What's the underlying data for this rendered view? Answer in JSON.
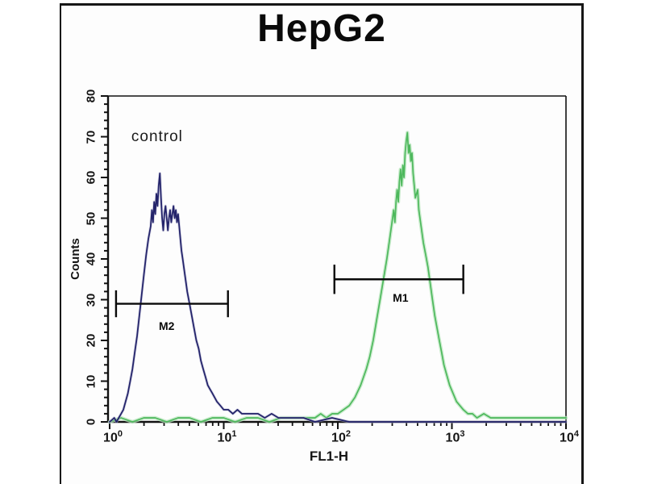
{
  "figure": {
    "title": "HepG2"
  },
  "colors": {
    "frame_border": "#161616",
    "axis": "#111111",
    "control_curve": "#23236a",
    "control_halo": "#b9b9d6",
    "positive_curve": "#4db85c",
    "positive_halo": "#b9e6bd",
    "marker": "#0a0a0a",
    "background": "#fdfdfd",
    "text": "#151515"
  },
  "chart_data": {
    "type": "line",
    "subtype": "flow-cytometry-histogram",
    "title": "HepG2",
    "xlabel": "FL1-H",
    "ylabel": "Counts",
    "x_scale": "log10",
    "x_range_log10": [
      0,
      4
    ],
    "x_tick_exponents": [
      0,
      1,
      2,
      3,
      4
    ],
    "x_tick_base": "10",
    "ylim": [
      0,
      80
    ],
    "y_major_ticks": [
      0,
      10,
      20,
      30,
      40,
      50,
      60,
      70,
      80
    ],
    "y_minor_step": 2,
    "grid": false,
    "legend": "none",
    "annotations": [
      {
        "text": "control",
        "x_log10": 0.19,
        "y_counts": 70
      }
    ],
    "markers": [
      {
        "label": "M2",
        "x1_log10": 0.056,
        "x2_log10": 1.037,
        "y_counts": 29,
        "cap_half_counts": 3.3,
        "label_x_log10": 0.5,
        "label_y_counts": 23.5
      },
      {
        "label": "M1",
        "x1_log10": 1.97,
        "x2_log10": 3.1,
        "y_counts": 35,
        "cap_half_counts": 3.6,
        "label_x_log10": 2.55,
        "label_y_counts": 30.5
      }
    ],
    "series": [
      {
        "name": "control",
        "peak_mode_x": 2.8,
        "peak_height_counts": 61,
        "points": [
          [
            0.0,
            0
          ],
          [
            0.04,
            1
          ],
          [
            0.06,
            0
          ],
          [
            0.08,
            1
          ],
          [
            0.1,
            2
          ],
          [
            0.12,
            3
          ],
          [
            0.14,
            5
          ],
          [
            0.16,
            7
          ],
          [
            0.18,
            10
          ],
          [
            0.2,
            13
          ],
          [
            0.22,
            17
          ],
          [
            0.24,
            21
          ],
          [
            0.26,
            26
          ],
          [
            0.28,
            31
          ],
          [
            0.3,
            36
          ],
          [
            0.32,
            41
          ],
          [
            0.34,
            45
          ],
          [
            0.36,
            48
          ],
          [
            0.37,
            52
          ],
          [
            0.38,
            49
          ],
          [
            0.39,
            54
          ],
          [
            0.4,
            51
          ],
          [
            0.41,
            56
          ],
          [
            0.42,
            53
          ],
          [
            0.43,
            58
          ],
          [
            0.44,
            61
          ],
          [
            0.45,
            55
          ],
          [
            0.46,
            50
          ],
          [
            0.47,
            47
          ],
          [
            0.48,
            51
          ],
          [
            0.49,
            53
          ],
          [
            0.5,
            50
          ],
          [
            0.51,
            47
          ],
          [
            0.52,
            50
          ],
          [
            0.53,
            52
          ],
          [
            0.54,
            49
          ],
          [
            0.55,
            51
          ],
          [
            0.56,
            53
          ],
          [
            0.57,
            50
          ],
          [
            0.58,
            52
          ],
          [
            0.59,
            49
          ],
          [
            0.6,
            51
          ],
          [
            0.61,
            48
          ],
          [
            0.62,
            45
          ],
          [
            0.63,
            42
          ],
          [
            0.64,
            40
          ],
          [
            0.65,
            38
          ],
          [
            0.66,
            36
          ],
          [
            0.67,
            34
          ],
          [
            0.68,
            32
          ],
          [
            0.7,
            29
          ],
          [
            0.72,
            26
          ],
          [
            0.74,
            23
          ],
          [
            0.76,
            20
          ],
          [
            0.78,
            18
          ],
          [
            0.8,
            15
          ],
          [
            0.82,
            13
          ],
          [
            0.84,
            11
          ],
          [
            0.86,
            9
          ],
          [
            0.88,
            8
          ],
          [
            0.9,
            7
          ],
          [
            0.92,
            6
          ],
          [
            0.94,
            5
          ],
          [
            0.97,
            4
          ],
          [
            1.0,
            3
          ],
          [
            1.04,
            3
          ],
          [
            1.08,
            2
          ],
          [
            1.12,
            3
          ],
          [
            1.16,
            2
          ],
          [
            1.2,
            2
          ],
          [
            1.25,
            2
          ],
          [
            1.3,
            2
          ],
          [
            1.36,
            1
          ],
          [
            1.42,
            2
          ],
          [
            1.48,
            1
          ],
          [
            1.55,
            1
          ],
          [
            1.62,
            1
          ],
          [
            1.7,
            1
          ],
          [
            1.8,
            0
          ],
          [
            1.95,
            1
          ],
          [
            2.1,
            0
          ],
          [
            2.4,
            0
          ],
          [
            2.8,
            0
          ],
          [
            3.2,
            0
          ],
          [
            3.6,
            0
          ],
          [
            4.0,
            0
          ]
        ]
      },
      {
        "name": "M1-positive",
        "peak_mode_x": 400,
        "peak_height_counts": 71,
        "points": [
          [
            0.0,
            0
          ],
          [
            0.1,
            1
          ],
          [
            0.2,
            0
          ],
          [
            0.3,
            1
          ],
          [
            0.4,
            1
          ],
          [
            0.5,
            0
          ],
          [
            0.6,
            1
          ],
          [
            0.7,
            1
          ],
          [
            0.8,
            0
          ],
          [
            0.9,
            1
          ],
          [
            1.0,
            1
          ],
          [
            1.1,
            0
          ],
          [
            1.2,
            1
          ],
          [
            1.3,
            1
          ],
          [
            1.4,
            0
          ],
          [
            1.5,
            1
          ],
          [
            1.6,
            1
          ],
          [
            1.7,
            1
          ],
          [
            1.8,
            1
          ],
          [
            1.85,
            2
          ],
          [
            1.9,
            1
          ],
          [
            1.95,
            2
          ],
          [
            2.0,
            2
          ],
          [
            2.05,
            3
          ],
          [
            2.1,
            4
          ],
          [
            2.15,
            6
          ],
          [
            2.2,
            9
          ],
          [
            2.25,
            13
          ],
          [
            2.28,
            16
          ],
          [
            2.31,
            20
          ],
          [
            2.34,
            25
          ],
          [
            2.37,
            30
          ],
          [
            2.4,
            35
          ],
          [
            2.43,
            40
          ],
          [
            2.45,
            44
          ],
          [
            2.47,
            48
          ],
          [
            2.49,
            52
          ],
          [
            2.5,
            49
          ],
          [
            2.51,
            54
          ],
          [
            2.52,
            57
          ],
          [
            2.53,
            54
          ],
          [
            2.54,
            59
          ],
          [
            2.55,
            62
          ],
          [
            2.56,
            58
          ],
          [
            2.57,
            63
          ],
          [
            2.58,
            60
          ],
          [
            2.59,
            66
          ],
          [
            2.6,
            69
          ],
          [
            2.61,
            71
          ],
          [
            2.62,
            66
          ],
          [
            2.63,
            68
          ],
          [
            2.64,
            64
          ],
          [
            2.65,
            66
          ],
          [
            2.66,
            61
          ],
          [
            2.67,
            58
          ],
          [
            2.68,
            55
          ],
          [
            2.7,
            57
          ],
          [
            2.71,
            52
          ],
          [
            2.73,
            48
          ],
          [
            2.75,
            44
          ],
          [
            2.77,
            41
          ],
          [
            2.79,
            38
          ],
          [
            2.81,
            34
          ],
          [
            2.83,
            30
          ],
          [
            2.85,
            26
          ],
          [
            2.87,
            23
          ],
          [
            2.89,
            20
          ],
          [
            2.91,
            17
          ],
          [
            2.93,
            14
          ],
          [
            2.95,
            12
          ],
          [
            2.98,
            9
          ],
          [
            3.01,
            7
          ],
          [
            3.04,
            5
          ],
          [
            3.07,
            4
          ],
          [
            3.1,
            3
          ],
          [
            3.14,
            2
          ],
          [
            3.18,
            2
          ],
          [
            3.22,
            1
          ],
          [
            3.28,
            2
          ],
          [
            3.34,
            1
          ],
          [
            3.4,
            1
          ],
          [
            3.48,
            1
          ],
          [
            3.56,
            1
          ],
          [
            3.64,
            1
          ],
          [
            3.72,
            1
          ],
          [
            3.8,
            1
          ],
          [
            3.9,
            1
          ],
          [
            4.0,
            1
          ]
        ]
      }
    ]
  }
}
